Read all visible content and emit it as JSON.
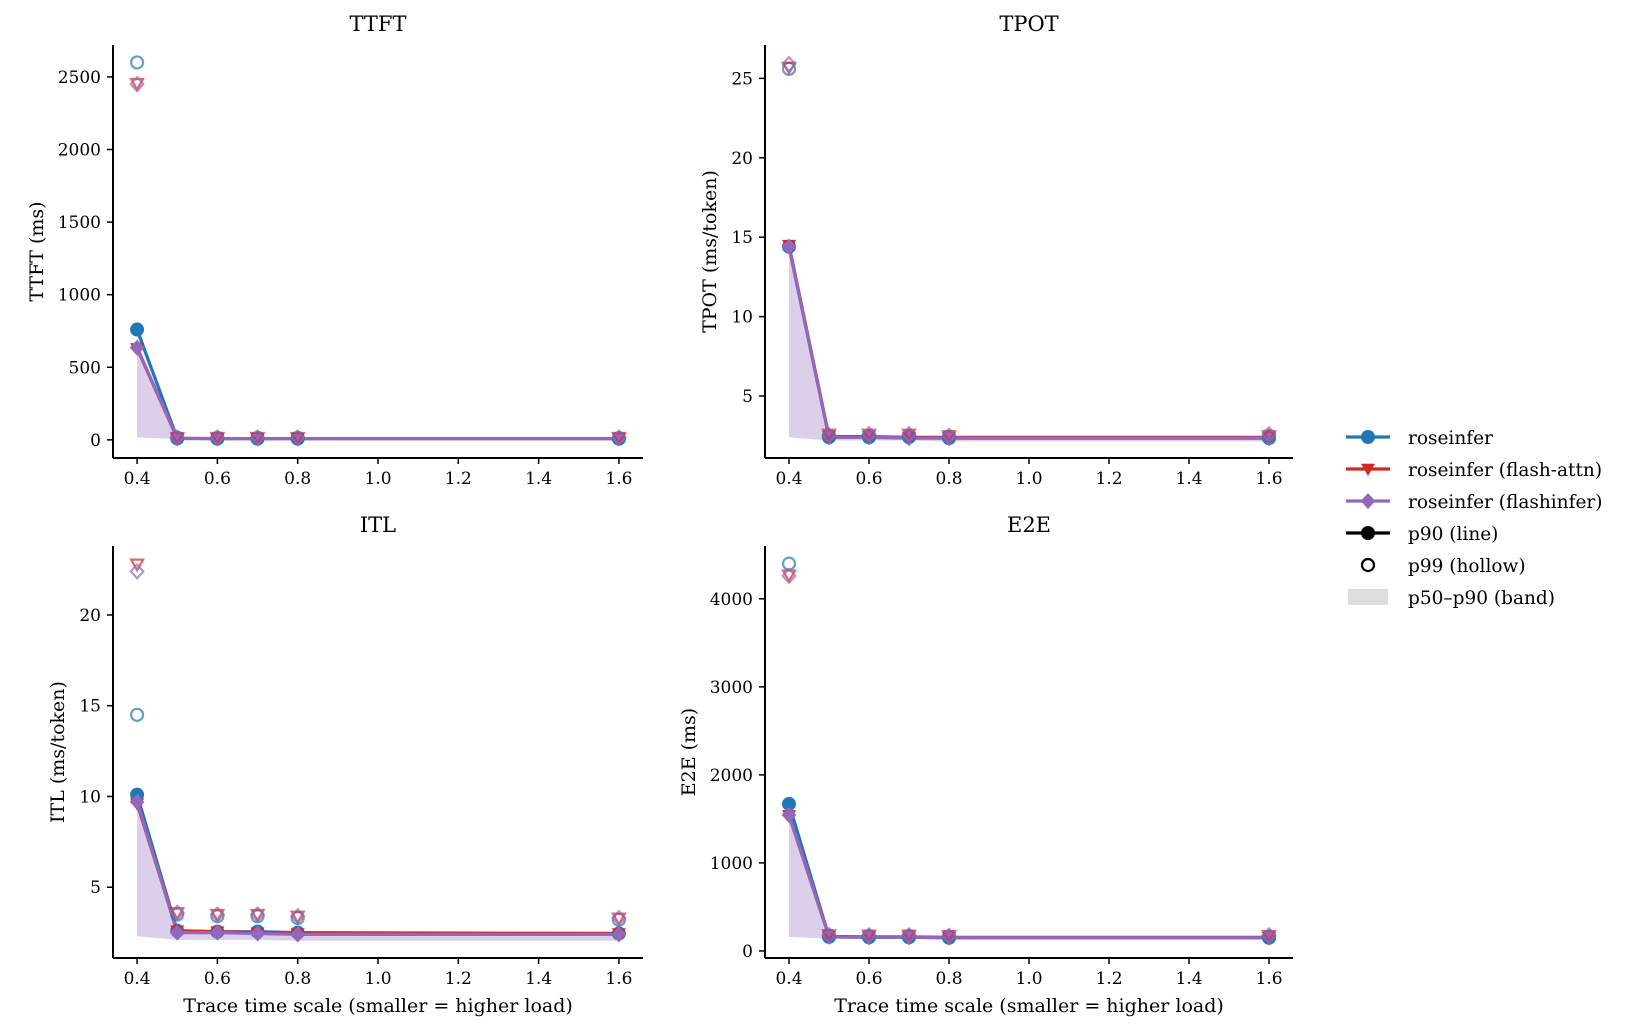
{
  "chart_data": [
    {
      "type": "line",
      "title": "TTFT",
      "xlabel": "",
      "ylabel": "TTFT (ms)",
      "x": [
        0.4,
        0.5,
        0.6,
        0.7,
        0.8,
        1.6
      ],
      "xlim": [
        0.34,
        1.66
      ],
      "ylim": [
        -125,
        2720
      ],
      "xticks": [
        0.4,
        0.6,
        0.8,
        1.0,
        1.2,
        1.4,
        1.6
      ],
      "xtick_labels": [
        "0.4",
        "0.6",
        "0.8",
        "1.0",
        "1.2",
        "1.4",
        "1.6"
      ],
      "yticks": [
        0,
        500,
        1000,
        1500,
        2000,
        2500
      ],
      "ytick_labels": [
        "0",
        "500",
        "1000",
        "1500",
        "2000",
        "2500"
      ],
      "grid": false,
      "series": [
        {
          "name": "roseinfer",
          "p90": [
            760,
            10,
            8,
            8,
            8,
            8
          ],
          "p99": [
            2600,
            15,
            14,
            14,
            14,
            12
          ],
          "p50": [
            20,
            6,
            6,
            6,
            6,
            6
          ]
        },
        {
          "name": "roseinfer (flash-attn)",
          "p90": [
            630,
            10,
            9,
            9,
            9,
            9
          ],
          "p99": [
            2455,
            16,
            16,
            16,
            16,
            16
          ],
          "p50": [
            15,
            6,
            6,
            6,
            6,
            6
          ]
        },
        {
          "name": "roseinfer (flashinfer)",
          "p90": [
            635,
            10,
            9,
            9,
            9,
            9
          ],
          "p99": [
            2450,
            16,
            16,
            16,
            16,
            16
          ],
          "p50": [
            15,
            6,
            6,
            6,
            6,
            6
          ]
        }
      ]
    },
    {
      "type": "line",
      "title": "TPOT",
      "xlabel": "",
      "ylabel": "TPOT (ms/token)",
      "x": [
        0.4,
        0.5,
        0.6,
        0.7,
        0.8,
        1.6
      ],
      "xlim": [
        0.34,
        1.66
      ],
      "ylim": [
        1.1,
        27.1
      ],
      "xticks": [
        0.4,
        0.6,
        0.8,
        1.0,
        1.2,
        1.4,
        1.6
      ],
      "xtick_labels": [
        "0.4",
        "0.6",
        "0.8",
        "1.0",
        "1.2",
        "1.4",
        "1.6"
      ],
      "yticks": [
        5,
        10,
        15,
        20,
        25
      ],
      "ytick_labels": [
        "5",
        "10",
        "15",
        "20",
        "25"
      ],
      "grid": false,
      "series": [
        {
          "name": "roseinfer",
          "p90": [
            14.4,
            2.4,
            2.4,
            2.4,
            2.35,
            2.35
          ],
          "p99": [
            25.6,
            2.5,
            2.5,
            2.5,
            2.45,
            2.5
          ],
          "p50": [
            2.4,
            2.2,
            2.2,
            2.2,
            2.15,
            2.15
          ]
        },
        {
          "name": "roseinfer (flash-attn)",
          "p90": [
            14.5,
            2.45,
            2.45,
            2.4,
            2.4,
            2.4
          ],
          "p99": [
            25.7,
            2.6,
            2.6,
            2.6,
            2.5,
            2.5
          ],
          "p50": [
            2.4,
            2.2,
            2.2,
            2.2,
            2.15,
            2.15
          ]
        },
        {
          "name": "roseinfer (flashinfer)",
          "p90": [
            14.4,
            2.4,
            2.4,
            2.35,
            2.35,
            2.35
          ],
          "p99": [
            25.9,
            2.55,
            2.6,
            2.6,
            2.5,
            2.6
          ],
          "p50": [
            2.4,
            2.2,
            2.2,
            2.2,
            2.15,
            2.15
          ]
        }
      ]
    },
    {
      "type": "line",
      "title": "ITL",
      "xlabel": "Trace time scale (smaller = higher load)",
      "ylabel": "ITL (ms/token)",
      "x": [
        0.4,
        0.5,
        0.6,
        0.7,
        0.8,
        1.6
      ],
      "xlim": [
        0.34,
        1.66
      ],
      "ylim": [
        1.1,
        23.8
      ],
      "xticks": [
        0.4,
        0.6,
        0.8,
        1.0,
        1.2,
        1.4,
        1.6
      ],
      "xtick_labels": [
        "0.4",
        "0.6",
        "0.8",
        "1.0",
        "1.2",
        "1.4",
        "1.6"
      ],
      "yticks": [
        5,
        10,
        15,
        20
      ],
      "ytick_labels": [
        "5",
        "10",
        "15",
        "20"
      ],
      "grid": false,
      "series": [
        {
          "name": "roseinfer",
          "p90": [
            10.1,
            2.6,
            2.55,
            2.55,
            2.5,
            2.45
          ],
          "p99": [
            14.5,
            3.5,
            3.4,
            3.4,
            3.3,
            3.2
          ],
          "p50": [
            2.3,
            2.1,
            2.1,
            2.1,
            2.05,
            2.05
          ]
        },
        {
          "name": "roseinfer (flash-attn)",
          "p90": [
            9.6,
            2.6,
            2.55,
            2.5,
            2.45,
            2.45
          ],
          "p99": [
            22.8,
            3.6,
            3.5,
            3.5,
            3.4,
            3.3
          ],
          "p50": [
            2.3,
            2.1,
            2.1,
            2.1,
            2.05,
            2.05
          ]
        },
        {
          "name": "roseinfer (flashinfer)",
          "p90": [
            9.7,
            2.5,
            2.5,
            2.45,
            2.4,
            2.4
          ],
          "p99": [
            22.4,
            3.6,
            3.5,
            3.5,
            3.4,
            3.3
          ],
          "p50": [
            2.3,
            2.1,
            2.1,
            2.1,
            2.05,
            2.05
          ]
        }
      ]
    },
    {
      "type": "line",
      "title": "E2E",
      "xlabel": "Trace time scale (smaller = higher load)",
      "ylabel": "E2E (ms)",
      "x": [
        0.4,
        0.5,
        0.6,
        0.7,
        0.8,
        1.6
      ],
      "xlim": [
        0.34,
        1.66
      ],
      "ylim": [
        -80,
        4600
      ],
      "xticks": [
        0.4,
        0.6,
        0.8,
        1.0,
        1.2,
        1.4,
        1.6
      ],
      "xtick_labels": [
        "0.4",
        "0.6",
        "0.8",
        "1.0",
        "1.2",
        "1.4",
        "1.6"
      ],
      "yticks": [
        0,
        1000,
        2000,
        3000,
        4000
      ],
      "ytick_labels": [
        "0",
        "1000",
        "2000",
        "3000",
        "4000"
      ],
      "grid": false,
      "series": [
        {
          "name": "roseinfer",
          "p90": [
            1670,
            160,
            155,
            155,
            150,
            150
          ],
          "p99": [
            4400,
            175,
            170,
            170,
            165,
            165
          ],
          "p50": [
            160,
            140,
            140,
            140,
            135,
            135
          ]
        },
        {
          "name": "roseinfer (flash-attn)",
          "p90": [
            1540,
            165,
            160,
            160,
            155,
            155
          ],
          "p99": [
            4270,
            185,
            180,
            180,
            175,
            175
          ],
          "p50": [
            160,
            140,
            140,
            140,
            135,
            135
          ]
        },
        {
          "name": "roseinfer (flashinfer)",
          "p90": [
            1545,
            160,
            155,
            155,
            150,
            150
          ],
          "p99": [
            4260,
            180,
            178,
            178,
            172,
            178
          ],
          "p50": [
            160,
            140,
            140,
            140,
            135,
            135
          ]
        }
      ]
    }
  ],
  "colors": {
    "roseinfer": "#1f77b4",
    "roseinfer (flash-attn)": "#d62728",
    "roseinfer (flashinfer)": "#9467bd",
    "band": "#d8c8dc",
    "legend_band": "#dddddd",
    "axis": "#000000"
  },
  "legend": {
    "placement": "right",
    "items": [
      {
        "label": "roseinfer",
        "marker": "circle",
        "color": "#1f77b4",
        "kind": "line"
      },
      {
        "label": "roseinfer (flash-attn)",
        "marker": "triangle-down",
        "color": "#d62728",
        "kind": "line"
      },
      {
        "label": "roseinfer (flashinfer)",
        "marker": "diamond",
        "color": "#9467bd",
        "kind": "line"
      },
      {
        "label": "p90 (line)",
        "marker": "circle",
        "color": "#000000",
        "kind": "line"
      },
      {
        "label": "p99 (hollow)",
        "marker": "hollow-circle",
        "color": "#000000",
        "kind": "marker"
      },
      {
        "label": "p50–p90 (band)",
        "marker": "none",
        "color": "#dddddd",
        "kind": "band"
      }
    ]
  }
}
